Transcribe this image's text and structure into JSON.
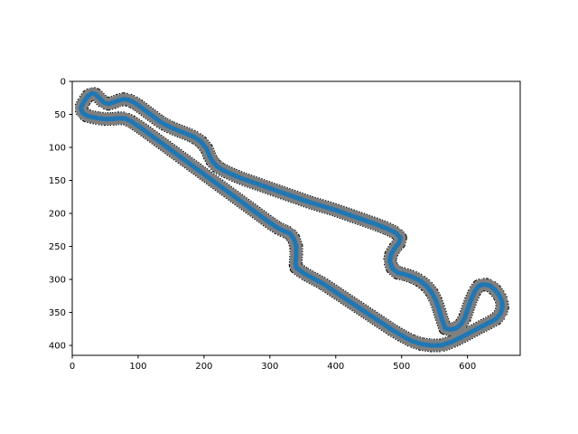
{
  "chart_data": {
    "type": "line",
    "title": "",
    "xlabel": "",
    "ylabel": "",
    "xlim": [
      0,
      680
    ],
    "ylim": [
      415,
      0
    ],
    "y_inverted": true,
    "grid": false,
    "x_ticks": [
      {
        "value": 0,
        "label": "0"
      },
      {
        "value": 100,
        "label": "100"
      },
      {
        "value": 200,
        "label": "200"
      },
      {
        "value": 300,
        "label": "300"
      },
      {
        "value": 400,
        "label": "400"
      },
      {
        "value": 500,
        "label": "500"
      },
      {
        "value": 600,
        "label": "600"
      }
    ],
    "y_ticks": [
      {
        "value": 0,
        "label": "0"
      },
      {
        "value": 50,
        "label": "50"
      },
      {
        "value": 100,
        "label": "100"
      },
      {
        "value": 150,
        "label": "150"
      },
      {
        "value": 200,
        "label": "200"
      },
      {
        "value": 250,
        "label": "250"
      },
      {
        "value": 300,
        "label": "300"
      },
      {
        "value": 350,
        "label": "350"
      },
      {
        "value": 400,
        "label": "400"
      }
    ],
    "colors": {
      "track_line": "#1f77b4",
      "track_boundary": "#7f7f7f",
      "boundary_edge": "#000000"
    },
    "series": [
      {
        "x": [
          13,
          18,
          24,
          30,
          36,
          42,
          48,
          55,
          62,
          70,
          78,
          85,
          92,
          100,
          108,
          116,
          124,
          132,
          140,
          150,
          160,
          170,
          180,
          188,
          196,
          204,
          208,
          212,
          216,
          220,
          226,
          234,
          245,
          260,
          280,
          300,
          320,
          340,
          360,
          380,
          400,
          420,
          440,
          460,
          478,
          492,
          498,
          496,
          490,
          484,
          482,
          486,
          494,
          504,
          516,
          528,
          538,
          546,
          552,
          557,
          561,
          566,
          574,
          583,
          590,
          596,
          600,
          605,
          611,
          617,
          622,
          628,
          635,
          642,
          648,
          652,
          653,
          650,
          643,
          632,
          620,
          605,
          590,
          575,
          560,
          545,
          530,
          515,
          500,
          485,
          470,
          455,
          440,
          425,
          410,
          395,
          380,
          365,
          352,
          344,
          340,
          339,
          340,
          340,
          336,
          330,
          322,
          312,
          300,
          285,
          270,
          255,
          240,
          225,
          210,
          195,
          180,
          165,
          150,
          135,
          120,
          105,
          90,
          80,
          70,
          60,
          50,
          40,
          30,
          22,
          16,
          13
        ],
        "y": [
          40,
          30,
          22,
          18,
          20,
          26,
          32,
          34,
          32,
          29,
          27,
          28,
          31,
          36,
          42,
          48,
          54,
          60,
          65,
          70,
          74,
          78,
          82,
          86,
          92,
          102,
          112,
          120,
          125,
          129,
          133,
          137,
          142,
          148,
          155,
          162,
          169,
          176,
          183,
          189,
          195,
          202,
          209,
          216,
          223,
          230,
          237,
          245,
          252,
          262,
          272,
          283,
          290,
          292,
          296,
          302,
          310,
          320,
          332,
          346,
          360,
          374,
          376,
          374,
          368,
          358,
          346,
          332,
          318,
          310,
          308,
          308,
          310,
          316,
          324,
          332,
          342,
          352,
          360,
          366,
          372,
          380,
          388,
          395,
          400,
          400,
          398,
          393,
          385,
          376,
          366,
          356,
          346,
          336,
          326,
          316,
          306,
          298,
          291,
          285,
          282,
          278,
          262,
          250,
          238,
          230,
          227,
          222,
          214,
          203,
          192,
          181,
          170,
          159,
          148,
          137,
          126,
          115,
          104,
          93,
          82,
          71,
          61,
          56,
          56,
          57,
          57,
          56,
          54,
          52,
          48,
          40
        ]
      }
    ]
  }
}
